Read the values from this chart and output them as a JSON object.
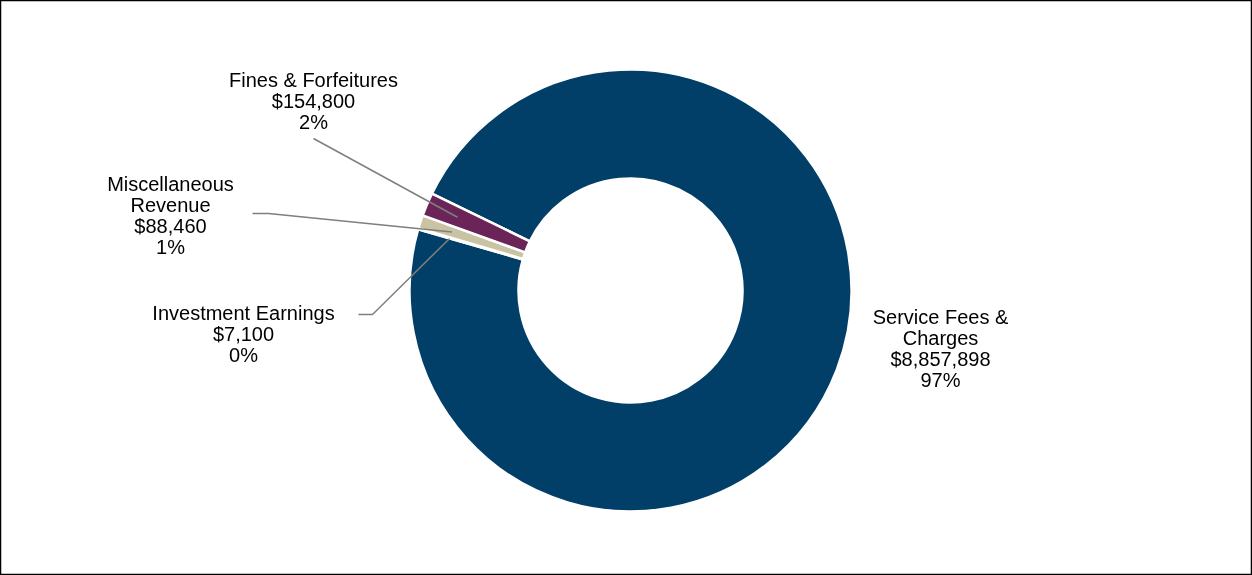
{
  "chart_data": {
    "type": "donut",
    "categories": [
      "Service Fees & Charges",
      "Investment Earnings",
      "Miscellaneous Revenue",
      "Fines & Forfeitures"
    ],
    "values": [
      8857898,
      7100,
      88460,
      154800
    ],
    "value_labels": [
      "$8,857,898\n97%",
      "$7,100\n0%",
      "$88,460\n1%",
      "$154,800\n2%"
    ],
    "colors": [
      "#023f68",
      "#e3dfc8",
      "#c9c3a3",
      "#6b2458"
    ]
  }
}
